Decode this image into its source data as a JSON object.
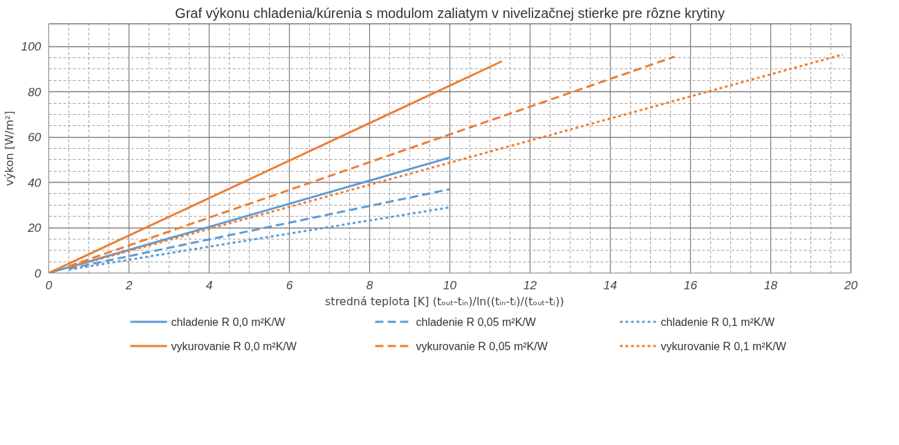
{
  "chart_data": {
    "type": "line",
    "title": "Graf výkonu chladenia/kúrenia s modulom zaliatym v nivelizačnej stierke pre rôzne krytiny",
    "xlabel": "stredná teplota [K]    (tₒᵤₜ-tᵢₙ)/ln((tᵢₙ-tᵢ)/(tₒᵤₜ-tᵢ))",
    "ylabel": "výkon [W/m²]",
    "xlim": [
      0,
      20
    ],
    "ylim": [
      0,
      110
    ],
    "xticks": [
      0,
      2,
      4,
      6,
      8,
      10,
      12,
      14,
      16,
      18,
      20
    ],
    "yticks": [
      0,
      20,
      40,
      60,
      80,
      100
    ],
    "grid": true,
    "legend": "bottom",
    "marker": "none",
    "series": [
      {
        "name": "chladenie R 0,0 m²K/W",
        "color": "#5b9bd5",
        "line_style": "solid",
        "x": [
          0,
          10
        ],
        "values": [
          0,
          51
        ]
      },
      {
        "name": "chladenie R 0,05 m²K/W",
        "color": "#5b9bd5",
        "line_style": "dashed",
        "x": [
          0.5,
          10
        ],
        "values": [
          1.9,
          37
        ]
      },
      {
        "name": "chladenie R 0,1 m²K/W",
        "color": "#5b9bd5",
        "line_style": "dotted",
        "x": [
          0.5,
          10
        ],
        "values": [
          1.5,
          29
        ]
      },
      {
        "name": "vykurovanie R 0,0 m²K/W",
        "color": "#ed7d31",
        "line_style": "solid",
        "x": [
          0,
          11.3
        ],
        "values": [
          0,
          93.5
        ]
      },
      {
        "name": "vykurovanie R 0,05 m²K/W",
        "color": "#ed7d31",
        "line_style": "dashed",
        "x": [
          0.5,
          15.6
        ],
        "values": [
          3,
          95.5
        ]
      },
      {
        "name": "vykurovanie R 0,1 m²K/W",
        "color": "#ed7d31",
        "line_style": "dotted",
        "x": [
          0.5,
          19.8
        ],
        "values": [
          2.4,
          96.5
        ]
      }
    ]
  }
}
